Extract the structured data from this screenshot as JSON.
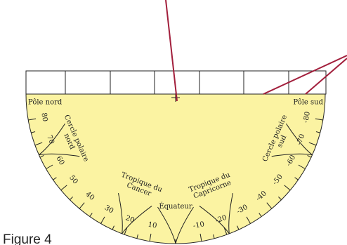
{
  "pole_north": "Pôle nord",
  "pole_south": "Pôle sud",
  "latitude_labels": [
    80,
    70,
    60,
    50,
    40,
    30,
    20,
    10,
    -10,
    -20,
    -30,
    -40,
    -50,
    -60,
    -70,
    -80
  ],
  "circles": [
    {
      "lines": [
        "Cercle polaire",
        "nord"
      ]
    },
    {
      "lines": [
        "Tropique du",
        "Cancer"
      ]
    },
    {
      "lines": [
        "Équateur"
      ]
    },
    {
      "lines": [
        "Tropique du",
        "Capricorne"
      ]
    },
    {
      "lines": [
        "Cercle polaire",
        "sud"
      ]
    }
  ],
  "caption": "Figure 4"
}
